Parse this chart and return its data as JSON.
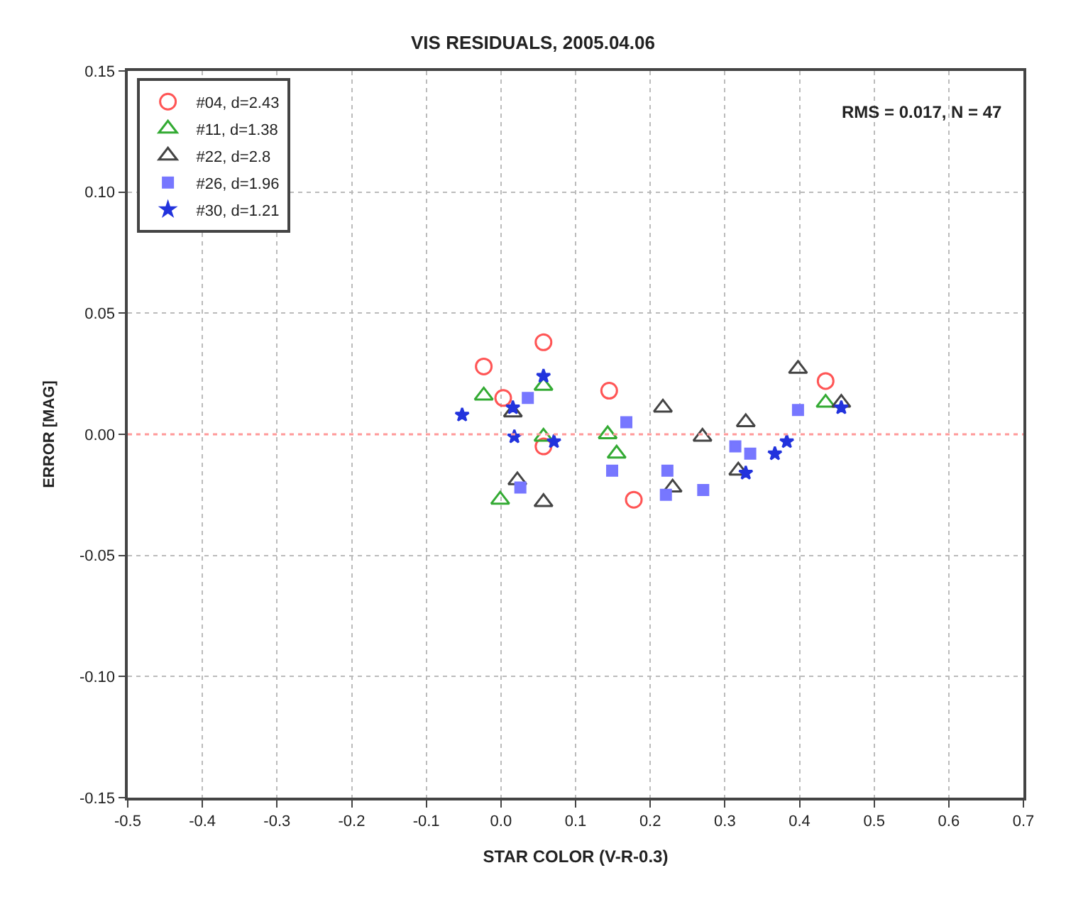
{
  "chart_data": {
    "type": "scatter",
    "title": "VIS RESIDUALS, 2005.04.06",
    "xlabel": "STAR COLOR (V-R-0.3)",
    "ylabel": "ERROR [MAG]",
    "annotations": [
      "RMS = 0.017, N = 47"
    ],
    "xlim": [
      -0.5,
      0.7
    ],
    "xticks": [
      -0.5,
      -0.4,
      -0.3,
      -0.2,
      -0.1,
      {
        "value": 0,
        "label": "0.0"
      },
      0.1,
      0.2,
      0.3,
      0.4,
      0.5,
      0.6,
      0.7
    ],
    "ylim": [
      -0.15,
      0.15
    ],
    "yticks": [
      {
        "value": -0.15,
        "label": "-0.15"
      },
      {
        "value": -0.1,
        "label": "-0.10"
      },
      {
        "value": -0.05,
        "label": "-0.05"
      },
      {
        "value": 0,
        "label": "0.00"
      },
      {
        "value": 0.05,
        "label": "0.05"
      },
      {
        "value": 0.1,
        "label": "0.10"
      },
      {
        "value": 0.15,
        "label": "0.15"
      }
    ],
    "grid": true,
    "legend": "top left",
    "ref_lines": [
      {
        "axis": "y",
        "value": 0,
        "color": "#ff9999",
        "line_style": "dotted"
      }
    ],
    "series": [
      {
        "name": "#04, d=2.43",
        "color": "#ff5555",
        "marker": "circle",
        "x": [
          -0.023,
          0.057,
          0.003,
          0.145,
          0.178,
          0.435,
          0.057
        ],
        "values": [
          0.028,
          0.038,
          0.015,
          0.018,
          -0.027,
          0.022,
          -0.005
        ]
      },
      {
        "name": "#11, d=1.38",
        "color": "#33aa33",
        "marker": "triangle",
        "x": [
          -0.023,
          0.057,
          0.057,
          -0.001,
          0.143,
          0.155,
          0.435
        ],
        "values": [
          0.016,
          0.02,
          -0.001,
          -0.027,
          0.0,
          -0.008,
          0.013
        ]
      },
      {
        "name": "#22, d=2.8",
        "color": "#444444",
        "marker": "triangle",
        "x": [
          0.016,
          0.022,
          0.057,
          0.217,
          0.27,
          0.328,
          0.318,
          0.398,
          0.456,
          0.23
        ],
        "values": [
          0.009,
          -0.019,
          -0.028,
          0.011,
          -0.001,
          0.005,
          -0.015,
          0.027,
          0.013,
          -0.022
        ]
      },
      {
        "name": "#26, d=1.96",
        "color": "#7777ff",
        "marker": "square",
        "x": [
          0.036,
          0.168,
          0.149,
          0.223,
          0.221,
          0.271,
          0.314,
          0.334,
          0.398,
          0.026
        ],
        "values": [
          0.015,
          0.005,
          -0.015,
          -0.015,
          -0.025,
          -0.023,
          -0.005,
          -0.008,
          0.01,
          -0.022
        ]
      },
      {
        "name": "#30, d=1.21",
        "color": "#2233dd",
        "marker": "star",
        "x": [
          -0.052,
          0.018,
          0.057,
          0.071,
          0.328,
          0.367,
          0.383,
          0.456,
          0.016
        ],
        "values": [
          0.008,
          -0.001,
          0.024,
          -0.003,
          -0.016,
          -0.008,
          -0.003,
          0.011,
          0.011
        ]
      }
    ]
  }
}
